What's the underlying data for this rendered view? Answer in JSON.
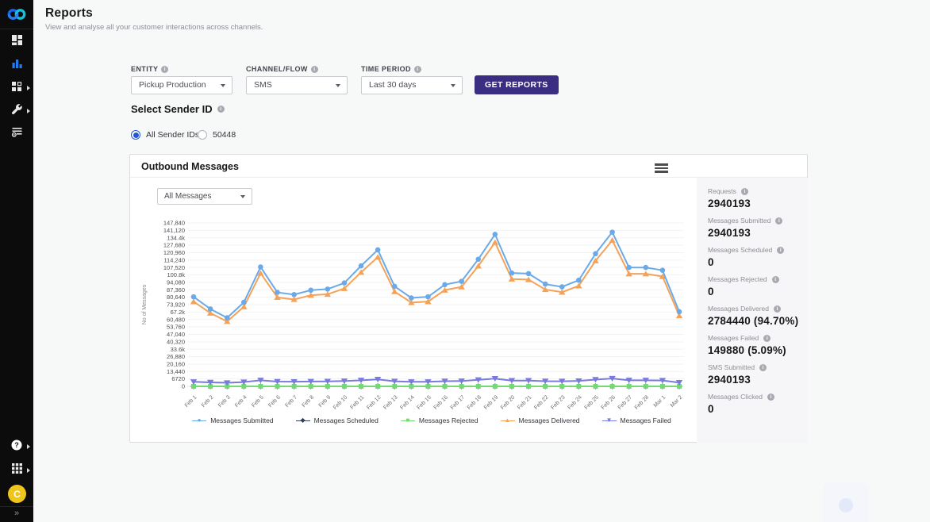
{
  "sidebar": {
    "icons": [
      "webex-logo",
      "dashboard-icon",
      "reports-icon",
      "services-icon",
      "tools-icon",
      "rules-icon",
      "help-icon",
      "apps-icon"
    ],
    "avatar_initial": "C",
    "avatar_color": "#efc51b",
    "active_icon_color": "#1f7cf1",
    "collapse_glyph": "»"
  },
  "header": {
    "title": "Reports",
    "subtitle": "View and analyse all your customer interactions across channels."
  },
  "filters": {
    "entity": {
      "label": "ENTITY",
      "value": "Pickup Production"
    },
    "channel": {
      "label": "CHANNEL/FLOW",
      "value": "SMS"
    },
    "time_period": {
      "label": "TIME PERIOD",
      "value": "Last 30 days"
    },
    "get_reports_label": "GET REPORTS",
    "button_color": "#3b2d82"
  },
  "sender": {
    "heading": "Select Sender ID",
    "options": [
      {
        "label": "All Sender IDs",
        "selected": true
      },
      {
        "label": "50448",
        "selected": false
      }
    ]
  },
  "card": {
    "title": "Outbound Messages",
    "message_filter_value": "All Messages",
    "stats": [
      {
        "label": "Requests",
        "value": "2940193"
      },
      {
        "label": "Messages Submitted",
        "value": "2940193"
      },
      {
        "label": "Messages Scheduled",
        "value": "0"
      },
      {
        "label": "Messages Rejected",
        "value": "0"
      },
      {
        "label": "Messages Delivered",
        "value": "2784440 (94.70%)"
      },
      {
        "label": "Messages Failed",
        "value": "149880 (5.09%)"
      },
      {
        "label": "SMS Submitted",
        "value": "2940193"
      },
      {
        "label": "Messages Clicked",
        "value": "0"
      }
    ]
  },
  "chart_data": {
    "type": "line",
    "title": "Outbound Messages",
    "ylabel": "No of Messages",
    "xlabel": "",
    "ylim": [
      0,
      147840
    ],
    "grid": true,
    "legend_position": "bottom",
    "y_tick_labels": [
      "147,840",
      "141,120",
      "134.4k",
      "127,680",
      "120,960",
      "114,240",
      "107,520",
      "100.8k",
      "94,080",
      "87,360",
      "80,640",
      "73,920",
      "67.2k",
      "60,480",
      "53,760",
      "47,040",
      "40,320",
      "33.6k",
      "26,880",
      "20,160",
      "13,440",
      "6720",
      "0"
    ],
    "categories": [
      "Feb 1",
      "Feb 2",
      "Feb 3",
      "Feb 4",
      "Feb 5",
      "Feb 6",
      "Feb 7",
      "Feb 8",
      "Feb 9",
      "Feb 10",
      "Feb 11",
      "Feb 12",
      "Feb 13",
      "Feb 14",
      "Feb 15",
      "Feb 16",
      "Feb 17",
      "Feb 18",
      "Feb 19",
      "Feb 20",
      "Feb 21",
      "Feb 22",
      "Feb 23",
      "Feb 24",
      "Feb 25",
      "Feb 26",
      "Feb 27",
      "Feb 28",
      "Mar 1",
      "Mar 2"
    ],
    "series": [
      {
        "name": "Messages Submitted",
        "color": "#6aaae8",
        "marker": "circle",
        "values": [
          81000,
          70000,
          62000,
          76000,
          108000,
          85000,
          83000,
          87000,
          88000,
          93500,
          109000,
          123500,
          90500,
          80000,
          81000,
          92000,
          95000,
          115000,
          137500,
          102500,
          102000,
          92500,
          90000,
          96000,
          120000,
          139500,
          107500,
          107500,
          105000,
          67500
        ]
      },
      {
        "name": "Messages Scheduled",
        "color": "#2f3c52",
        "marker": "diamond",
        "values": [
          0,
          0,
          0,
          0,
          0,
          0,
          0,
          0,
          0,
          0,
          0,
          0,
          0,
          0,
          0,
          0,
          0,
          0,
          0,
          0,
          0,
          0,
          0,
          0,
          0,
          0,
          0,
          0,
          0,
          0
        ]
      },
      {
        "name": "Messages Rejected",
        "color": "#74d874",
        "marker": "square",
        "values": [
          0,
          0,
          0,
          0,
          0,
          0,
          0,
          0,
          0,
          0,
          0,
          0,
          0,
          0,
          0,
          0,
          0,
          0,
          0,
          0,
          0,
          0,
          0,
          0,
          0,
          0,
          0,
          0,
          0,
          0
        ]
      },
      {
        "name": "Messages Delivered",
        "color": "#f5a259",
        "marker": "triangle-up",
        "values": [
          76700,
          66300,
          58700,
          72000,
          102300,
          80500,
          78600,
          82400,
          83300,
          88500,
          103200,
          116900,
          85700,
          75800,
          76700,
          87100,
          90000,
          108900,
          130200,
          97100,
          96600,
          87600,
          85200,
          90900,
          113600,
          132100,
          101800,
          101800,
          99400,
          63900
        ]
      },
      {
        "name": "Messages Failed",
        "color": "#7a79e0",
        "marker": "triangle-down",
        "values": [
          4100,
          3600,
          3200,
          3900,
          5500,
          4300,
          4200,
          4400,
          4500,
          4800,
          5500,
          6300,
          4600,
          4100,
          4100,
          4700,
          4800,
          5900,
          7000,
          5200,
          5200,
          4700,
          4600,
          4900,
          6100,
          7100,
          5500,
          5500,
          5300,
          3400
        ]
      }
    ]
  }
}
